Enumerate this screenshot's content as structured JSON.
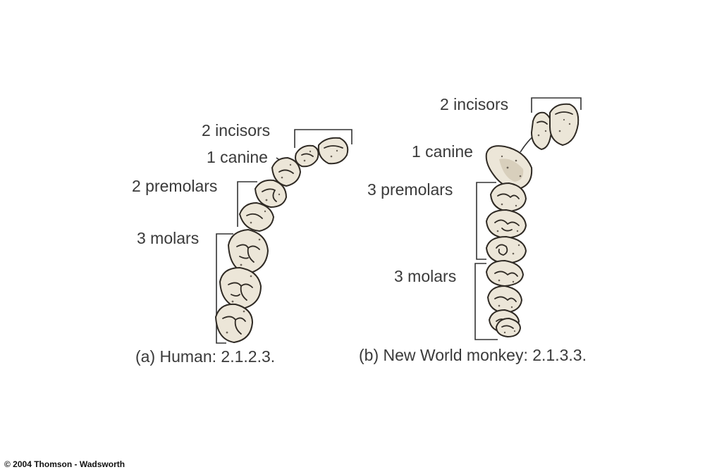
{
  "human": {
    "incisors_label": "2 incisors",
    "canine_label": "1 canine",
    "premolars_label": "2 premolars",
    "molars_label": "3 molars",
    "caption": "(a) Human: 2.1.2.3."
  },
  "monkey": {
    "incisors_label": "2 incisors",
    "canine_label": "1 canine",
    "premolars_label": "3 premolars",
    "molars_label": "3 molars",
    "caption": "(b) New World monkey: 2.1.3.3."
  },
  "copyright": "© 2004 Thomson - Wadsworth"
}
